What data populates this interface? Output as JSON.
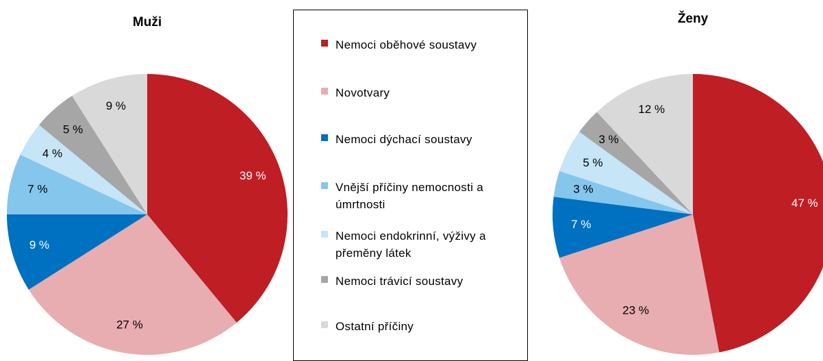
{
  "chart_data": [
    {
      "type": "pie",
      "title": "Muži",
      "values": [
        39,
        27,
        9,
        7,
        4,
        5,
        9
      ],
      "value_labels": [
        "39 %",
        "27 %",
        "9 %",
        "7 %",
        "4 %",
        "5 %",
        "9 %"
      ]
    },
    {
      "type": "pie",
      "title": "Ženy",
      "values": [
        47,
        23,
        7,
        3,
        5,
        3,
        12
      ],
      "value_labels": [
        "47 %",
        "23 %",
        "7 %",
        "3 %",
        "5 %",
        "3 %",
        "12 %"
      ]
    }
  ],
  "legend": {
    "categories": [
      "Nemoci oběhové soustavy",
      "Novotvary",
      "Nemoci dýchací soustavy",
      "Vnější příčiny nemocnosti a úmrtnosti",
      "Nemoci endokrinní, výživy a přeměny látek",
      "Nemoci trávicí soustavy",
      "Ostatní příčiny"
    ],
    "colors": [
      "#be1e24",
      "#e8adb0",
      "#0070c0",
      "#85c6ec",
      "#c6e5f7",
      "#a6a6a6",
      "#d9d9d9"
    ]
  }
}
